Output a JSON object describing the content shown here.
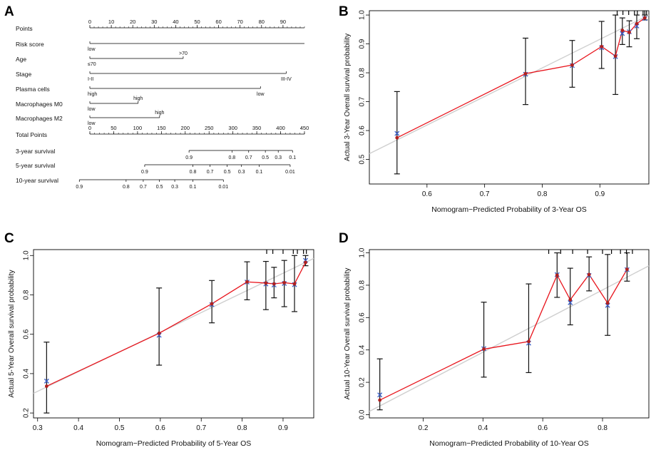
{
  "panels": [
    {
      "letter": "A"
    },
    {
      "letter": "B"
    },
    {
      "letter": "C"
    },
    {
      "letter": "D"
    }
  ],
  "colors": {
    "fit_line": "#e8141c",
    "ideal_line": "#cfcfcf",
    "observed_point": "#b0201e",
    "corrected_mark": "#3a5fc8",
    "error_bar": "#111111"
  },
  "chart_data": [
    {
      "panel": "A",
      "type": "nomogram",
      "rows": [
        {
          "label": "Points",
          "kind": "scale",
          "min": 0,
          "max": 100,
          "ticks": [
            {
              "v": 0,
              "t": "0"
            },
            {
              "v": 10,
              "t": "10"
            },
            {
              "v": 20,
              "t": "20"
            },
            {
              "v": 30,
              "t": "30"
            },
            {
              "v": 40,
              "t": "40"
            },
            {
              "v": 50,
              "t": "50"
            },
            {
              "v": 60,
              "t": "60"
            },
            {
              "v": 70,
              "t": "70"
            },
            {
              "v": 80,
              "t": "80"
            },
            {
              "v": 90,
              "t": "90"
            }
          ],
          "minor_step": 2
        },
        {
          "label": "Risk score",
          "kind": "variable",
          "from": 0,
          "to": 100,
          "marks": [
            {
              "v": 0,
              "t": "low",
              "pos": "below"
            }
          ]
        },
        {
          "label": "Age",
          "kind": "variable",
          "from": 0,
          "to": 43.5,
          "marks": [
            {
              "v": 43.5,
              "t": ">70",
              "pos": "above"
            },
            {
              "v": 0,
              "t": "≤70",
              "pos": "below"
            }
          ]
        },
        {
          "label": "Stage",
          "kind": "variable",
          "from": 0,
          "to": 91.5,
          "marks": [
            {
              "v": 91.5,
              "t": "III-IV",
              "pos": "below"
            },
            {
              "v": 0,
              "t": "I-II",
              "pos": "below"
            }
          ]
        },
        {
          "label": "Plasma cells",
          "kind": "variable",
          "from": 0,
          "to": 79.5,
          "marks": [
            {
              "v": 79.5,
              "t": "low",
              "pos": "below"
            },
            {
              "v": 0,
              "t": "high",
              "pos": "below"
            }
          ]
        },
        {
          "label": "Macrophages M0",
          "kind": "variable",
          "from": 0,
          "to": 22.5,
          "marks": [
            {
              "v": 22.5,
              "t": "high",
              "pos": "above"
            },
            {
              "v": 0,
              "t": "low",
              "pos": "below"
            }
          ]
        },
        {
          "label": "Macrophages M2",
          "kind": "variable",
          "from": 0,
          "to": 32.5,
          "marks": [
            {
              "v": 32.5,
              "t": "high",
              "pos": "above"
            },
            {
              "v": 0,
              "t": "low",
              "pos": "below"
            }
          ]
        },
        {
          "label": "Total Points",
          "kind": "scale",
          "min": 0,
          "max": 450,
          "ticks": [
            {
              "v": 0,
              "t": "0"
            },
            {
              "v": 50,
              "t": "50"
            },
            {
              "v": 100,
              "t": "100"
            },
            {
              "v": 150,
              "t": "150"
            },
            {
              "v": 200,
              "t": "200"
            },
            {
              "v": 250,
              "t": "250"
            },
            {
              "v": 300,
              "t": "300"
            },
            {
              "v": 350,
              "t": "350"
            },
            {
              "v": 400,
              "t": "400"
            },
            {
              "v": 450,
              "t": "450"
            }
          ],
          "minor_step": 10
        },
        {
          "label": "3-year survival",
          "kind": "prob",
          "ticks": [
            {
              "p": 208,
              "t": "0.9"
            },
            {
              "p": 298,
              "t": "0.8"
            },
            {
              "p": 333,
              "t": "0.7"
            },
            {
              "p": 368,
              "t": "0.5"
            },
            {
              "p": 395,
              "t": "0.3"
            },
            {
              "p": 425,
              "t": "0.1"
            }
          ]
        },
        {
          "label": "5-year survival",
          "kind": "prob",
          "ticks": [
            {
              "p": 115,
              "t": "0.9"
            },
            {
              "p": 216,
              "t": "0.8"
            },
            {
              "p": 252,
              "t": "0.7"
            },
            {
              "p": 288,
              "t": "0.5"
            },
            {
              "p": 318,
              "t": "0.3"
            },
            {
              "p": 355,
              "t": "0.1"
            },
            {
              "p": 420,
              "t": "0.01"
            }
          ]
        },
        {
          "label": "10-year survival",
          "kind": "prob",
          "ticks": [
            {
              "p": -22,
              "t": "0.9"
            },
            {
              "p": 76,
              "t": "0.8"
            },
            {
              "p": 112,
              "t": "0.7"
            },
            {
              "p": 146,
              "t": "0.5"
            },
            {
              "p": 178,
              "t": "0.3"
            },
            {
              "p": 216,
              "t": "0.1"
            },
            {
              "p": 280,
              "t": "0.01"
            }
          ]
        }
      ]
    },
    {
      "panel": "B",
      "type": "scatter",
      "title": "",
      "xlabel": "Nomogram−Predicted Probability of 3-Year OS",
      "ylabel": "Actual 3-Year Overall survival probability",
      "xlim": [
        0.5,
        0.985
      ],
      "ylim": [
        0.415,
        1.015
      ],
      "xticks": [
        0.6,
        0.7,
        0.8,
        0.9
      ],
      "yticks": [
        0.5,
        0.6,
        0.7,
        0.8,
        0.9,
        1.0
      ],
      "ideal_line": [
        [
          0.5,
          0.52
        ],
        [
          0.985,
          1.0
        ]
      ],
      "points": [
        {
          "x": 0.548,
          "y": 0.575,
          "lo": 0.45,
          "hi": 0.735,
          "bc": 0.59
        },
        {
          "x": 0.771,
          "y": 0.797,
          "lo": 0.69,
          "hi": 0.92,
          "bc": 0.795
        },
        {
          "x": 0.852,
          "y": 0.827,
          "lo": 0.75,
          "hi": 0.912,
          "bc": 0.825
        },
        {
          "x": 0.903,
          "y": 0.891,
          "lo": 0.815,
          "hi": 0.978,
          "bc": 0.887
        },
        {
          "x": 0.927,
          "y": 0.858,
          "lo": 0.725,
          "hi": 1.0,
          "bc": 0.856
        },
        {
          "x": 0.939,
          "y": 0.947,
          "lo": 0.898,
          "hi": 0.99,
          "bc": 0.936
        },
        {
          "x": 0.951,
          "y": 0.94,
          "lo": 0.89,
          "hi": 0.98,
          "bc": 0.942
        },
        {
          "x": 0.964,
          "y": 0.97,
          "lo": 0.918,
          "hi": 1.0,
          "bc": 0.962
        },
        {
          "x": 0.978,
          "y": 0.99,
          "lo": 0.983,
          "hi": 1.0,
          "bc": 0.988
        }
      ],
      "rug": [
        0.93,
        0.94,
        0.95,
        0.96,
        0.965,
        0.975,
        0.978,
        0.981
      ]
    },
    {
      "panel": "C",
      "type": "scatter",
      "title": "",
      "xlabel": "Nomogram−Predicted Probability of 5-Year OS",
      "ylabel": "Actual 5-Year Overall survival probability",
      "xlim": [
        0.29,
        0.975
      ],
      "ylim": [
        0.175,
        1.03
      ],
      "xticks": [
        0.3,
        0.4,
        0.5,
        0.6,
        0.7,
        0.8,
        0.9
      ],
      "yticks": [
        0.2,
        0.4,
        0.6,
        0.8,
        1.0
      ],
      "ideal_line": [
        [
          0.29,
          0.3
        ],
        [
          0.975,
          0.985
        ]
      ],
      "points": [
        {
          "x": 0.322,
          "y": 0.336,
          "lo": 0.2,
          "hi": 0.56,
          "bc": 0.362
        },
        {
          "x": 0.597,
          "y": 0.605,
          "lo": 0.443,
          "hi": 0.835,
          "bc": 0.595
        },
        {
          "x": 0.726,
          "y": 0.755,
          "lo": 0.658,
          "hi": 0.873,
          "bc": 0.75
        },
        {
          "x": 0.812,
          "y": 0.866,
          "lo": 0.775,
          "hi": 0.968,
          "bc": 0.865
        },
        {
          "x": 0.858,
          "y": 0.86,
          "lo": 0.725,
          "hi": 0.97,
          "bc": 0.855
        },
        {
          "x": 0.878,
          "y": 0.856,
          "lo": 0.785,
          "hi": 0.94,
          "bc": 0.85
        },
        {
          "x": 0.903,
          "y": 0.862,
          "lo": 0.74,
          "hi": 0.975,
          "bc": 0.858
        },
        {
          "x": 0.928,
          "y": 0.856,
          "lo": 0.715,
          "hi": 1.0,
          "bc": 0.852
        },
        {
          "x": 0.955,
          "y": 0.965,
          "lo": 0.948,
          "hi": 1.0,
          "bc": 0.975
        }
      ],
      "rug": [
        0.86,
        0.875,
        0.9,
        0.925,
        0.935,
        0.95,
        0.957
      ]
    },
    {
      "panel": "D",
      "type": "scatter",
      "title": "",
      "xlabel": "Nomogram−Predicted Probability of 10-Year OS",
      "ylabel": "Actual 10-Year Overall survival probability",
      "xlim": [
        0.02,
        0.955
      ],
      "ylim": [
        -0.02,
        1.02
      ],
      "xticks": [
        0.2,
        0.4,
        0.6,
        0.8
      ],
      "yticks": [
        0.0,
        0.2,
        0.4,
        0.6,
        0.8,
        1.0
      ],
      "ideal_line": [
        [
          0.02,
          0.02
        ],
        [
          0.955,
          0.92
        ]
      ],
      "points": [
        {
          "x": 0.055,
          "y": 0.09,
          "lo": 0.03,
          "hi": 0.345,
          "bc": 0.122
        },
        {
          "x": 0.403,
          "y": 0.405,
          "lo": 0.232,
          "hi": 0.695,
          "bc": 0.408
        },
        {
          "x": 0.553,
          "y": 0.452,
          "lo": 0.26,
          "hi": 0.808,
          "bc": 0.442
        },
        {
          "x": 0.648,
          "y": 0.862,
          "lo": 0.725,
          "hi": 1.0,
          "bc": 0.865
        },
        {
          "x": 0.692,
          "y": 0.71,
          "lo": 0.555,
          "hi": 0.905,
          "bc": 0.692
        },
        {
          "x": 0.755,
          "y": 0.866,
          "lo": 0.765,
          "hi": 0.975,
          "bc": 0.86
        },
        {
          "x": 0.817,
          "y": 0.69,
          "lo": 0.49,
          "hi": 0.99,
          "bc": 0.675
        },
        {
          "x": 0.882,
          "y": 0.898,
          "lo": 0.825,
          "hi": 1.0,
          "bc": 0.896
        }
      ],
      "rug": [
        0.62,
        0.66,
        0.7,
        0.75,
        0.8,
        0.83,
        0.86,
        0.88,
        0.9
      ]
    }
  ]
}
